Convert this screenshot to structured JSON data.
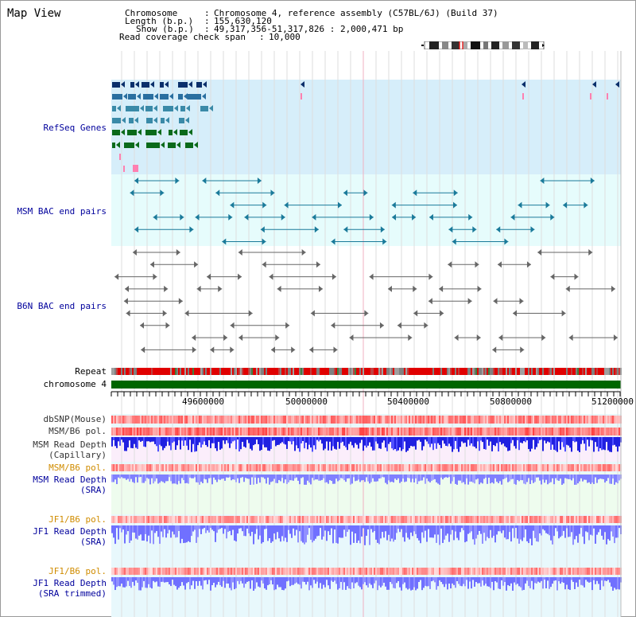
{
  "title": "Map View",
  "info": {
    "chromosome_label": "Chromosome",
    "chromosome_value": "Chromosome 4, reference assembly (C57BL/6J) (Build 37)",
    "length_label": "Length (b.p.)",
    "length_value": "155,630,120",
    "show_label": "Show (b.p.)",
    "show_value": "49,317,356-51,317,826 : 2,000,471 bp",
    "coverage_label": "Read coverage check span",
    "coverage_value": "10,000"
  },
  "tracks": {
    "refseq": "RefSeq Genes",
    "msm_bac": "MSM BAC end pairs",
    "b6n_bac": "B6N BAC end pairs",
    "repeat": "Repeat",
    "chromosome": "chromosome 4",
    "dbsnp": "dbSNP(Mouse)",
    "msm_b6_pol_1": "MSM/B6 pol.",
    "msm_depth_cap_1": "MSM Read Depth",
    "msm_depth_cap_2": "(Capillary)",
    "msm_b6_pol_2": "MSM/B6 pol.",
    "msm_depth_sra_1": "MSM Read Depth",
    "msm_depth_sra_2": "(SRA)",
    "jf1_b6_pol_1": "JF1/B6 pol.",
    "jf1_depth_sra_1": "JF1 Read Depth",
    "jf1_depth_sra_2": "(SRA)",
    "jf1_b6_pol_2": "JF1/B6 pol.",
    "jf1_depth_trim_1": "JF1 Read Depth",
    "jf1_depth_trim_2": "(SRA trimmed)"
  },
  "axis": {
    "ticks": [
      "49600000",
      "50000000",
      "50400000",
      "50800000",
      "51200000"
    ]
  },
  "colors": {
    "refseq_bg": "#d6eefa",
    "bac_bg": "#e6fcfc",
    "chromosome": "#006600",
    "depth_blue": "#0000ff",
    "depth_light": "#8080ff",
    "pol_red": "#ff0000",
    "label_blue": "#00009c",
    "label_orange": "#d08c00"
  }
}
